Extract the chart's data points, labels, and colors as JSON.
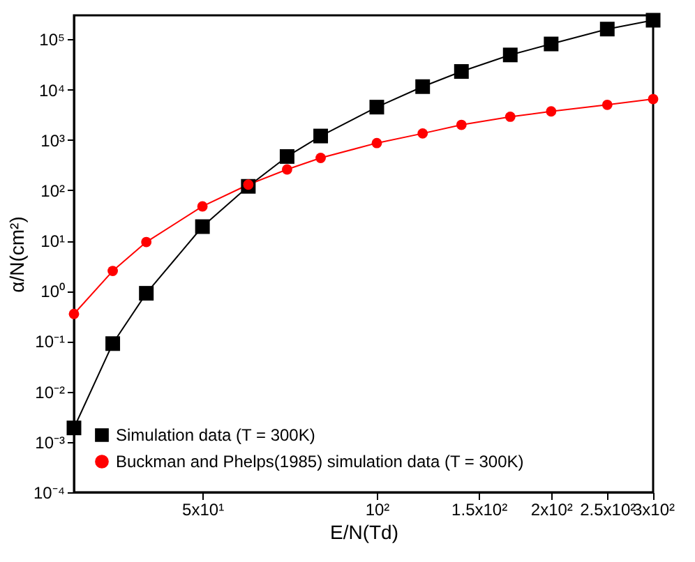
{
  "chart_data": {
    "type": "line",
    "xlabel": "E/N(Td)",
    "ylabel": "α/N(cm²)",
    "log": "xy",
    "xlim": [
      30,
      300
    ],
    "ylim": [
      0.0001,
      300000
    ],
    "xticks": [
      {
        "value": 50,
        "label": "5x10¹"
      },
      {
        "value": 100,
        "label": "10²"
      },
      {
        "value": 150,
        "label": "1.5x10²"
      },
      {
        "value": 200,
        "label": "2x10²"
      },
      {
        "value": 250,
        "label": "2.5x10²"
      },
      {
        "value": 300,
        "label": "3x10²"
      }
    ],
    "yticks": [
      {
        "value": 0.0001,
        "label": "10⁻⁴"
      },
      {
        "value": 0.001,
        "label": "10⁻³"
      },
      {
        "value": 0.01,
        "label": "10⁻²"
      },
      {
        "value": 0.1,
        "label": "10⁻¹"
      },
      {
        "value": 1,
        "label": "10⁰"
      },
      {
        "value": 10,
        "label": "10¹"
      },
      {
        "value": 100,
        "label": "10²"
      },
      {
        "value": 1000,
        "label": "10³"
      },
      {
        "value": 10000,
        "label": "10⁴"
      },
      {
        "value": 100000,
        "label": "10⁵"
      }
    ],
    "x": [
      30,
      35,
      40,
      50,
      60,
      70,
      80,
      100,
      120,
      140,
      170,
      200,
      250,
      300
    ],
    "legend": "bottom left",
    "line_style": "solid",
    "series": [
      {
        "name": "Simulation data (T = 300K)",
        "color": "#000000",
        "marker": "square",
        "values": [
          0.0019,
          0.09,
          0.9,
          19,
          120,
          470,
          1200,
          4500,
          11500,
          23000,
          49000,
          81000,
          160000,
          240000
        ]
      },
      {
        "name": "Buckman and Phelps(1985) simulation data (T = 300K)",
        "color": "#ff0000",
        "marker": "circle",
        "values": [
          0.35,
          2.5,
          9.4,
          48,
          130,
          260,
          440,
          870,
          1350,
          2000,
          2900,
          3700,
          5000,
          6500
        ]
      }
    ]
  }
}
